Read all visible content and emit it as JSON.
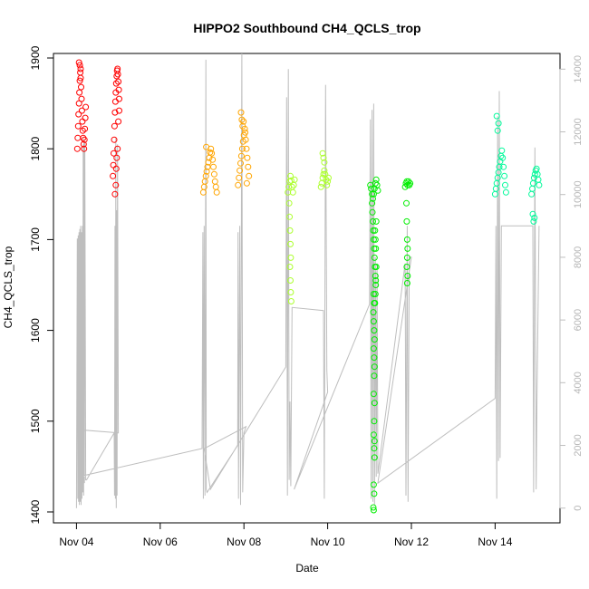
{
  "chart_data": {
    "type": "scatter",
    "title": "HIPPO2 Southbound CH4_QCLS_trop",
    "xlabel": "Date",
    "ylabel": "CH4_QCLS_trop",
    "x_unit": "days in November",
    "xlim": [
      3.45,
      15.55
    ],
    "ylim": [
      1388,
      1905
    ],
    "x_ticks": [
      4,
      6,
      8,
      10,
      12,
      14
    ],
    "x_tick_labels": [
      "Nov 04",
      "Nov 06",
      "Nov 08",
      "Nov 10",
      "Nov 12",
      "Nov 14"
    ],
    "y_ticks": [
      1400,
      1500,
      1600,
      1700,
      1800,
      1900
    ],
    "y_tick_labels": [
      "1400",
      "1500",
      "1600",
      "1700",
      "1800",
      "1900"
    ],
    "y2_label": "",
    "y2_lim": [
      -470,
      14500
    ],
    "y2_ticks": [
      0,
      2000,
      4000,
      6000,
      8000,
      10000,
      12000,
      14000
    ],
    "y2_tick_labels": [
      "0",
      "2000",
      "4000",
      "6000",
      "8000",
      "10000",
      "12000",
      "14000"
    ],
    "y2_color": "#bebebe",
    "grid": false,
    "legend": "none",
    "series": [
      {
        "color": "#ff0000",
        "points": [
          [
            4.02,
            1800
          ],
          [
            4.03,
            1812
          ],
          [
            4.04,
            1825
          ],
          [
            4.05,
            1838
          ],
          [
            4.06,
            1850
          ],
          [
            4.07,
            1862
          ],
          [
            4.08,
            1875
          ],
          [
            4.09,
            1884
          ],
          [
            4.1,
            1878
          ],
          [
            4.11,
            1868
          ],
          [
            4.12,
            1855
          ],
          [
            4.13,
            1842
          ],
          [
            4.14,
            1830
          ],
          [
            4.15,
            1820
          ],
          [
            4.16,
            1812
          ],
          [
            4.17,
            1805
          ],
          [
            4.18,
            1800
          ],
          [
            4.19,
            1810
          ],
          [
            4.2,
            1822
          ],
          [
            4.21,
            1834
          ],
          [
            4.22,
            1846
          ],
          [
            4.06,
            1895
          ],
          [
            4.08,
            1892
          ],
          [
            4.1,
            1888
          ],
          [
            4.87,
            1770
          ],
          [
            4.88,
            1782
          ],
          [
            4.89,
            1795
          ],
          [
            4.9,
            1810
          ],
          [
            4.91,
            1825
          ],
          [
            4.92,
            1840
          ],
          [
            4.93,
            1852
          ],
          [
            4.94,
            1862
          ],
          [
            4.95,
            1872
          ],
          [
            4.96,
            1880
          ],
          [
            4.97,
            1886
          ],
          [
            4.98,
            1888
          ],
          [
            4.99,
            1882
          ],
          [
            5.0,
            1874
          ],
          [
            5.01,
            1865
          ],
          [
            5.02,
            1855
          ],
          [
            4.92,
            1750
          ],
          [
            4.94,
            1760
          ],
          [
            4.96,
            1790
          ],
          [
            4.98,
            1800
          ],
          [
            5.0,
            1830
          ],
          [
            5.02,
            1842
          ],
          [
            4.95,
            1778
          ]
        ]
      },
      {
        "color": "#ffa500",
        "points": [
          [
            7.03,
            1752
          ],
          [
            7.05,
            1758
          ],
          [
            7.07,
            1764
          ],
          [
            7.09,
            1770
          ],
          [
            7.11,
            1775
          ],
          [
            7.13,
            1780
          ],
          [
            7.15,
            1785
          ],
          [
            7.17,
            1790
          ],
          [
            7.19,
            1796
          ],
          [
            7.21,
            1800
          ],
          [
            7.23,
            1795
          ],
          [
            7.25,
            1788
          ],
          [
            7.27,
            1780
          ],
          [
            7.29,
            1772
          ],
          [
            7.31,
            1764
          ],
          [
            7.33,
            1758
          ],
          [
            7.35,
            1752
          ],
          [
            7.1,
            1802
          ],
          [
            7.86,
            1760
          ],
          [
            7.88,
            1768
          ],
          [
            7.9,
            1776
          ],
          [
            7.92,
            1784
          ],
          [
            7.94,
            1792
          ],
          [
            7.96,
            1800
          ],
          [
            7.98,
            1808
          ],
          [
            8.0,
            1815
          ],
          [
            8.02,
            1822
          ],
          [
            8.04,
            1810
          ],
          [
            8.06,
            1800
          ],
          [
            8.08,
            1790
          ],
          [
            8.1,
            1780
          ],
          [
            8.12,
            1770
          ],
          [
            7.93,
            1840
          ],
          [
            7.95,
            1832
          ],
          [
            7.97,
            1825
          ],
          [
            7.99,
            1830
          ],
          [
            8.03,
            1818
          ],
          [
            8.07,
            1762
          ]
        ]
      },
      {
        "color": "#adff2f",
        "points": [
          [
            9.05,
            1752
          ],
          [
            9.07,
            1758
          ],
          [
            9.09,
            1764
          ],
          [
            9.11,
            1770
          ],
          [
            9.13,
            1765
          ],
          [
            9.15,
            1758
          ],
          [
            9.17,
            1752
          ],
          [
            9.19,
            1760
          ],
          [
            9.21,
            1766
          ],
          [
            9.08,
            1740
          ],
          [
            9.09,
            1725
          ],
          [
            9.1,
            1710
          ],
          [
            9.11,
            1695
          ],
          [
            9.12,
            1680
          ],
          [
            9.1,
            1670
          ],
          [
            9.11,
            1655
          ],
          [
            9.12,
            1642
          ],
          [
            9.13,
            1632
          ],
          [
            9.84,
            1758
          ],
          [
            9.86,
            1762
          ],
          [
            9.88,
            1768
          ],
          [
            9.9,
            1772
          ],
          [
            9.92,
            1776
          ],
          [
            9.94,
            1772
          ],
          [
            9.96,
            1766
          ],
          [
            9.98,
            1760
          ],
          [
            10.0,
            1764
          ],
          [
            10.02,
            1768
          ],
          [
            9.9,
            1790
          ],
          [
            9.88,
            1795
          ],
          [
            9.92,
            1785
          ]
        ]
      },
      {
        "color": "#00ee00",
        "points": [
          [
            11.02,
            1760
          ],
          [
            11.04,
            1756
          ],
          [
            11.06,
            1750
          ],
          [
            11.08,
            1745
          ],
          [
            11.1,
            1750
          ],
          [
            11.12,
            1756
          ],
          [
            11.14,
            1762
          ],
          [
            11.16,
            1766
          ],
          [
            11.18,
            1760
          ],
          [
            11.2,
            1754
          ],
          [
            11.06,
            1740
          ],
          [
            11.07,
            1730
          ],
          [
            11.08,
            1720
          ],
          [
            11.09,
            1710
          ],
          [
            11.1,
            1700
          ],
          [
            11.11,
            1690
          ],
          [
            11.12,
            1680
          ],
          [
            11.13,
            1670
          ],
          [
            11.14,
            1660
          ],
          [
            11.15,
            1650
          ],
          [
            11.1,
            1640
          ],
          [
            11.11,
            1630
          ],
          [
            11.09,
            1620
          ],
          [
            11.1,
            1610
          ],
          [
            11.11,
            1600
          ],
          [
            11.12,
            1590
          ],
          [
            11.1,
            1580
          ],
          [
            11.11,
            1570
          ],
          [
            11.12,
            1560
          ],
          [
            11.11,
            1550
          ],
          [
            11.1,
            1530
          ],
          [
            11.12,
            1520
          ],
          [
            11.11,
            1500
          ],
          [
            11.1,
            1485
          ],
          [
            11.12,
            1478
          ],
          [
            11.11,
            1470
          ],
          [
            11.12,
            1460
          ],
          [
            11.1,
            1430
          ],
          [
            11.11,
            1420
          ],
          [
            11.09,
            1405
          ],
          [
            11.1,
            1402
          ],
          [
            11.13,
            1630
          ],
          [
            11.14,
            1640
          ],
          [
            11.15,
            1655
          ],
          [
            11.16,
            1670
          ],
          [
            11.15,
            1690
          ],
          [
            11.14,
            1700
          ],
          [
            11.13,
            1710
          ],
          [
            11.16,
            1720
          ],
          [
            11.85,
            1758
          ],
          [
            11.87,
            1762
          ],
          [
            11.89,
            1764
          ],
          [
            11.91,
            1760
          ],
          [
            11.93,
            1764
          ],
          [
            11.95,
            1760
          ],
          [
            11.97,
            1762
          ],
          [
            11.88,
            1740
          ],
          [
            11.89,
            1720
          ],
          [
            11.9,
            1700
          ],
          [
            11.91,
            1690
          ],
          [
            11.9,
            1680
          ],
          [
            11.89,
            1670
          ],
          [
            11.91,
            1660
          ],
          [
            11.9,
            1652
          ]
        ]
      },
      {
        "color": "#00fa9a",
        "points": [
          [
            14.0,
            1750
          ],
          [
            14.02,
            1756
          ],
          [
            14.04,
            1762
          ],
          [
            14.06,
            1768
          ],
          [
            14.08,
            1774
          ],
          [
            14.1,
            1780
          ],
          [
            14.12,
            1786
          ],
          [
            14.14,
            1792
          ],
          [
            14.16,
            1798
          ],
          [
            14.18,
            1790
          ],
          [
            14.2,
            1780
          ],
          [
            14.22,
            1770
          ],
          [
            14.24,
            1760
          ],
          [
            14.26,
            1752
          ],
          [
            14.04,
            1836
          ],
          [
            14.06,
            1820
          ],
          [
            14.08,
            1828
          ],
          [
            14.87,
            1750
          ],
          [
            14.89,
            1756
          ],
          [
            14.91,
            1762
          ],
          [
            14.93,
            1768
          ],
          [
            14.95,
            1772
          ],
          [
            14.97,
            1776
          ],
          [
            14.99,
            1778
          ],
          [
            15.01,
            1772
          ],
          [
            15.03,
            1766
          ],
          [
            15.05,
            1760
          ],
          [
            14.9,
            1728
          ],
          [
            14.92,
            1720
          ],
          [
            14.94,
            1724
          ]
        ]
      }
    ],
    "y2_series": {
      "color": "#bebebe",
      "points": [
        [
          4.0,
          0
        ],
        [
          4.02,
          8600
        ],
        [
          4.03,
          300
        ],
        [
          4.04,
          8700
        ],
        [
          4.05,
          200
        ],
        [
          4.06,
          8800
        ],
        [
          4.07,
          100
        ],
        [
          4.08,
          8900
        ],
        [
          4.09,
          200
        ],
        [
          4.1,
          9000
        ],
        [
          4.11,
          100
        ],
        [
          4.12,
          8800
        ],
        [
          4.13,
          300
        ],
        [
          4.14,
          9000
        ],
        [
          4.15,
          500
        ],
        [
          4.16,
          11600
        ],
        [
          4.17,
          400
        ],
        [
          4.18,
          11800
        ],
        [
          4.19,
          800
        ],
        [
          4.2,
          11700
        ],
        [
          4.22,
          900
        ],
        [
          4.24,
          900
        ],
        [
          4.9,
          2400
        ],
        [
          4.91,
          400
        ],
        [
          4.92,
          9000
        ],
        [
          4.93,
          300
        ],
        [
          4.94,
          11800
        ],
        [
          4.95,
          0
        ],
        [
          4.96,
          9500
        ],
        [
          4.97,
          400
        ],
        [
          4.98,
          11600
        ],
        [
          5.0,
          2400
        ],
        [
          5.0,
          2400
        ],
        [
          4.05,
          2500
        ],
        [
          4.05,
          1000
        ],
        [
          7.0,
          1900
        ],
        [
          7.02,
          8800
        ],
        [
          7.03,
          300
        ],
        [
          7.05,
          9000
        ],
        [
          7.07,
          400
        ],
        [
          7.09,
          14300
        ],
        [
          7.1,
          600
        ],
        [
          7.12,
          500
        ],
        [
          7.85,
          2000
        ],
        [
          7.86,
          8800
        ],
        [
          7.87,
          300
        ],
        [
          7.9,
          9000
        ],
        [
          7.92,
          100
        ],
        [
          7.95,
          14500
        ],
        [
          7.97,
          500
        ],
        [
          8.0,
          2400
        ],
        [
          8.05,
          2600
        ],
        [
          8.05,
          2600
        ],
        [
          7.05,
          1900
        ],
        [
          7.2,
          600
        ],
        [
          9.0,
          4500
        ],
        [
          9.02,
          13100
        ],
        [
          9.04,
          400
        ],
        [
          9.06,
          14000
        ],
        [
          9.08,
          900
        ],
        [
          9.1,
          3400
        ],
        [
          9.12,
          700
        ],
        [
          9.15,
          6400
        ],
        [
          9.9,
          6300
        ],
        [
          9.92,
          300
        ],
        [
          9.95,
          13500
        ],
        [
          9.98,
          4400
        ],
        [
          10.0,
          3700
        ],
        [
          10.0,
          3700
        ],
        [
          9.2,
          600
        ],
        [
          11.0,
          6500
        ],
        [
          11.02,
          12400
        ],
        [
          11.04,
          300
        ],
        [
          11.06,
          12700
        ],
        [
          11.08,
          200
        ],
        [
          11.1,
          12900
        ],
        [
          11.12,
          100
        ],
        [
          11.14,
          8000
        ],
        [
          11.16,
          1000
        ],
        [
          11.18,
          7800
        ],
        [
          11.2,
          1100
        ],
        [
          11.85,
          7800
        ],
        [
          11.87,
          400
        ],
        [
          11.9,
          9000
        ],
        [
          11.92,
          200
        ],
        [
          11.95,
          8000
        ],
        [
          12.0,
          8000
        ],
        [
          12.0,
          8000
        ],
        [
          11.2,
          800
        ],
        [
          14.0,
          3500
        ],
        [
          14.02,
          9000
        ],
        [
          14.04,
          300
        ],
        [
          14.06,
          12500
        ],
        [
          14.08,
          1500
        ],
        [
          14.1,
          13300
        ],
        [
          14.12,
          1600
        ],
        [
          14.15,
          9000
        ],
        [
          14.9,
          9000
        ],
        [
          14.92,
          500
        ],
        [
          14.95,
          11500
        ],
        [
          14.98,
          600
        ],
        [
          15.0,
          3500
        ],
        [
          15.05,
          9000
        ]
      ]
    }
  }
}
